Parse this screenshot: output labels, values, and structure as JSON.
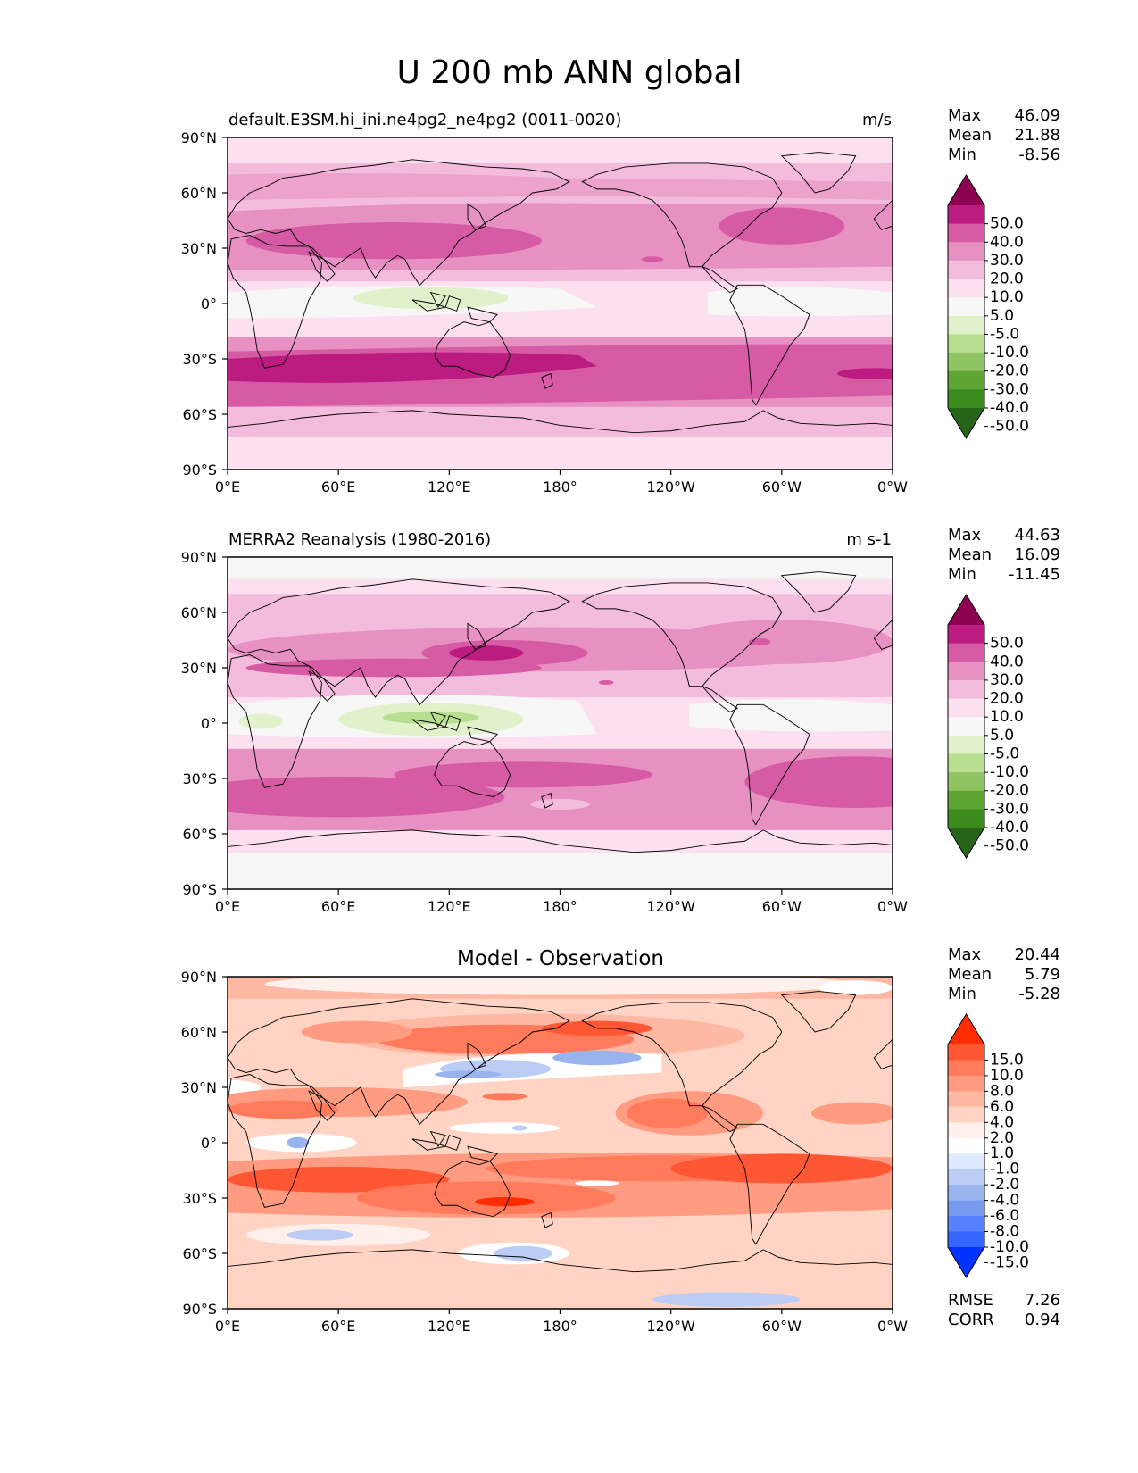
{
  "figure_title": "U 200 mb ANN global",
  "x_ticks": [
    "0°E",
    "60°E",
    "120°E",
    "180°",
    "120°W",
    "60°W",
    "0°W"
  ],
  "y_ticks": [
    "90°N",
    "60°N",
    "30°N",
    "0°",
    "30°S",
    "60°S",
    "90°S"
  ],
  "stat_labels": {
    "max": "Max",
    "mean": "Mean",
    "min": "Min",
    "rmse": "RMSE",
    "corr": "CORR"
  },
  "colors": {
    "main_levels": [
      "#276419",
      "#3c8b1f",
      "#5fa534",
      "#8fc462",
      "#b8df8f",
      "#e1f2cb",
      "#f7f7f7",
      "#fde0ef",
      "#f4bcdc",
      "#e791c2",
      "#d65ba4",
      "#bc1b7f",
      "#8e0152"
    ],
    "diff_levels": [
      "#0033ff",
      "#3366ff",
      "#5580ff",
      "#7799ee",
      "#99b3ee",
      "#bbccf5",
      "#ddeaff",
      "#ffffff",
      "#fff0ec",
      "#ffd4c4",
      "#ffb8a3",
      "#ff9b80",
      "#ff7b5c",
      "#ff5733",
      "#ff2d00"
    ],
    "land_outline": "#000000"
  },
  "panels": [
    {
      "id": "test",
      "title_left": "default.E3SM.hi_ini.ne4pg2_ne4pg2 (0011-0020)",
      "title_right": "m/s",
      "title_center": "",
      "stats": {
        "max": "46.09",
        "mean": "21.88",
        "min": "-8.56"
      },
      "colorbar_labels": [
        "50.0",
        "40.0",
        "30.0",
        "20.0",
        "10.0",
        "5.0",
        "-5.0",
        "-10.0",
        "-20.0",
        "-30.0",
        "-40.0",
        "-50.0"
      ]
    },
    {
      "id": "reference",
      "title_left": "MERRA2 Reanalysis (1980-2016)",
      "title_right": "m s-1",
      "title_center": "",
      "stats": {
        "max": "44.63",
        "mean": "16.09",
        "min": "-11.45"
      },
      "colorbar_labels": [
        "50.0",
        "40.0",
        "30.0",
        "20.0",
        "10.0",
        "5.0",
        "-5.0",
        "-10.0",
        "-20.0",
        "-30.0",
        "-40.0",
        "-50.0"
      ]
    },
    {
      "id": "difference",
      "title_left": "",
      "title_right": "",
      "title_center": "Model - Observation",
      "stats": {
        "max": "20.44",
        "mean": "5.79",
        "min": "-5.28"
      },
      "colorbar_labels": [
        "15.0",
        "10.0",
        "8.0",
        "6.0",
        "4.0",
        "2.0",
        "1.0",
        "-1.0",
        "-2.0",
        "-4.0",
        "-6.0",
        "-8.0",
        "-10.0",
        "-15.0"
      ],
      "metrics": {
        "rmse": "7.26",
        "corr": "0.94"
      }
    }
  ]
}
